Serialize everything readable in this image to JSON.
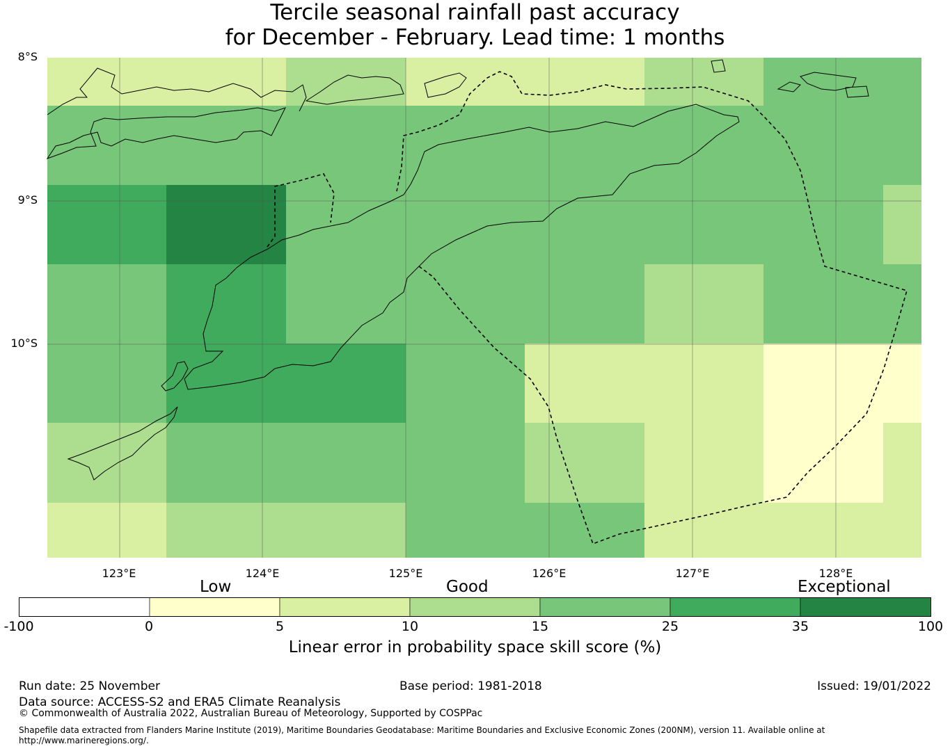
{
  "title_line1": "Tercile seasonal rainfall past accuracy",
  "title_line2": "for December - February. Lead time: 1 months",
  "map": {
    "lat_labels": [
      "8°S",
      "9°S",
      "10°S"
    ],
    "lon_labels": [
      "123°E",
      "124°E",
      "125°E",
      "126°E",
      "127°E",
      "128°E"
    ]
  },
  "colorbar": {
    "categories": [
      "Low",
      "Good",
      "Exceptional"
    ],
    "ticks": [
      "-100",
      "0",
      "5",
      "10",
      "15",
      "25",
      "35",
      "100"
    ],
    "colors": [
      "#ffffff",
      "#ffffcc",
      "#d9f0a3",
      "#addd8e",
      "#78c679",
      "#41ab5d",
      "#238443"
    ],
    "label": "Linear error in probability space skill score (%)"
  },
  "grid_colors": [
    [
      "#d9f0a3",
      "#d9f0a3",
      "#addd8e",
      "#d9f0a3",
      "#d9f0a3",
      "#addd8e",
      "#78c679"
    ],
    [
      "#78c679",
      "#78c679",
      "#78c679",
      "#78c679",
      "#78c679",
      "#78c679",
      "#78c679"
    ],
    [
      "#41ab5d",
      "#238443",
      "#78c679",
      "#78c679",
      "#78c679",
      "#78c679",
      "#78c679"
    ],
    [
      "#78c679",
      "#41ab5d",
      "#78c679",
      "#78c679",
      "#78c679",
      "#addd8e",
      "#78c679"
    ],
    [
      "#78c679",
      "#41ab5d",
      "#41ab5d",
      "#78c679",
      "#d9f0a3",
      "#d9f0a3",
      "#ffffcc"
    ],
    [
      "#addd8e",
      "#78c679",
      "#78c679",
      "#78c679",
      "#addd8e",
      "#d9f0a3",
      "#ffffcc"
    ],
    [
      "#d9f0a3",
      "#addd8e",
      "#addd8e",
      "#78c679",
      "#78c679",
      "#d9f0a3",
      "#d9f0a3"
    ]
  ],
  "footer": {
    "run_date": "Run date: 25 November",
    "base_period": "Base period: 1981-2018",
    "issued": "Issued: 19/01/2022",
    "data_source": "Data source: ACCESS-S2 and ERA5 Climate Reanalysis",
    "copyright": "© Commonwealth of Australia 2022, Australian Bureau of Meteorology, Supported by COSPPac",
    "shapefile_line1": "Shapefile data extracted from Flanders Marine Institute (2019), Maritime Boundaries Geodatabase: Maritime Boundaries and Exclusive Economic Zones (200NM), version 11. Available online at",
    "shapefile_line2": "http://www.marineregions.org/."
  }
}
